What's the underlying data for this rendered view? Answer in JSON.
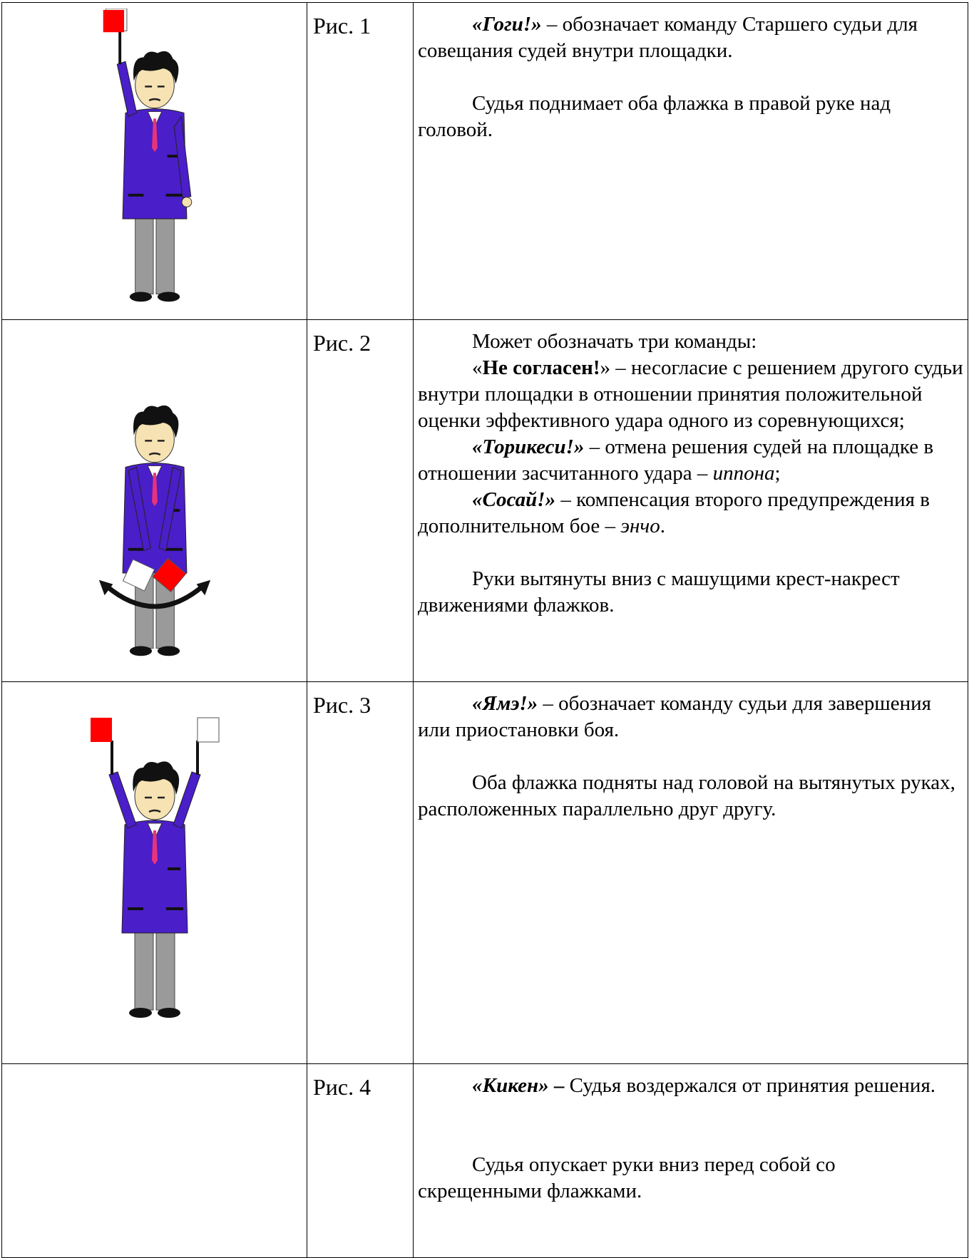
{
  "table": {
    "rows": [
      {
        "figure": "Рис. 1",
        "blocks": [
          [
            [
              {
                "text": "«Гоги!»",
                "style": "bi"
              },
              {
                "text": " – обозначает команду Старшего судьи для совещания судей внутри площадки."
              }
            ]
          ],
          [
            [
              {
                "text": "Судья поднимает оба флажка в правой руке над головой."
              }
            ]
          ]
        ]
      },
      {
        "figure": "Рис. 2",
        "blocks": [
          [
            [
              {
                "text": "Может обозначать три команды:"
              }
            ],
            [
              {
                "text": "«"
              },
              {
                "text": "Не согласен!",
                "style": "b"
              },
              {
                "text": "» – несогласие с решением другого судьи внутри площадки в отношении принятия положительной оценки эффективного удара одного из соревнующихся;"
              }
            ],
            [
              {
                "text": "«Торикеси!»",
                "style": "bi"
              },
              {
                "text": " – отмена решения судей на площадке в отношении засчитанного удара – "
              },
              {
                "text": "иппона",
                "style": "i"
              },
              {
                "text": ";"
              }
            ],
            [
              {
                "text": "«Сосай!»",
                "style": "bi"
              },
              {
                "text": " – компенсация второго предупреждения в дополнительном бое – "
              },
              {
                "text": "энчо",
                "style": "i"
              },
              {
                "text": "."
              }
            ]
          ],
          [
            [
              {
                "text": "Руки вытянуты вниз с машущими крест-накрест движениями флажков."
              }
            ]
          ]
        ]
      },
      {
        "figure": "Рис. 3",
        "blocks": [
          [
            [
              {
                "text": "«Ямэ!»",
                "style": "bi"
              },
              {
                "text": " – обозначает команду судьи для завершения или приостановки боя."
              }
            ]
          ],
          [
            [
              {
                "text": "Оба флажка подняты над головой на вытянутых руках, расположенных параллельно друг другу."
              }
            ]
          ]
        ]
      },
      {
        "figure": "Рис. 4",
        "blocks": [
          [
            [
              {
                "text": "«Кикен»",
                "style": "bi"
              },
              {
                "text": " – ",
                "style": "b"
              },
              {
                "text": "Судья воздержался от принятия решения."
              }
            ]
          ],
          [
            [
              {
                "text": "Судья опускает руки вниз перед собой со скрещенными флажками."
              }
            ]
          ]
        ]
      }
    ]
  }
}
